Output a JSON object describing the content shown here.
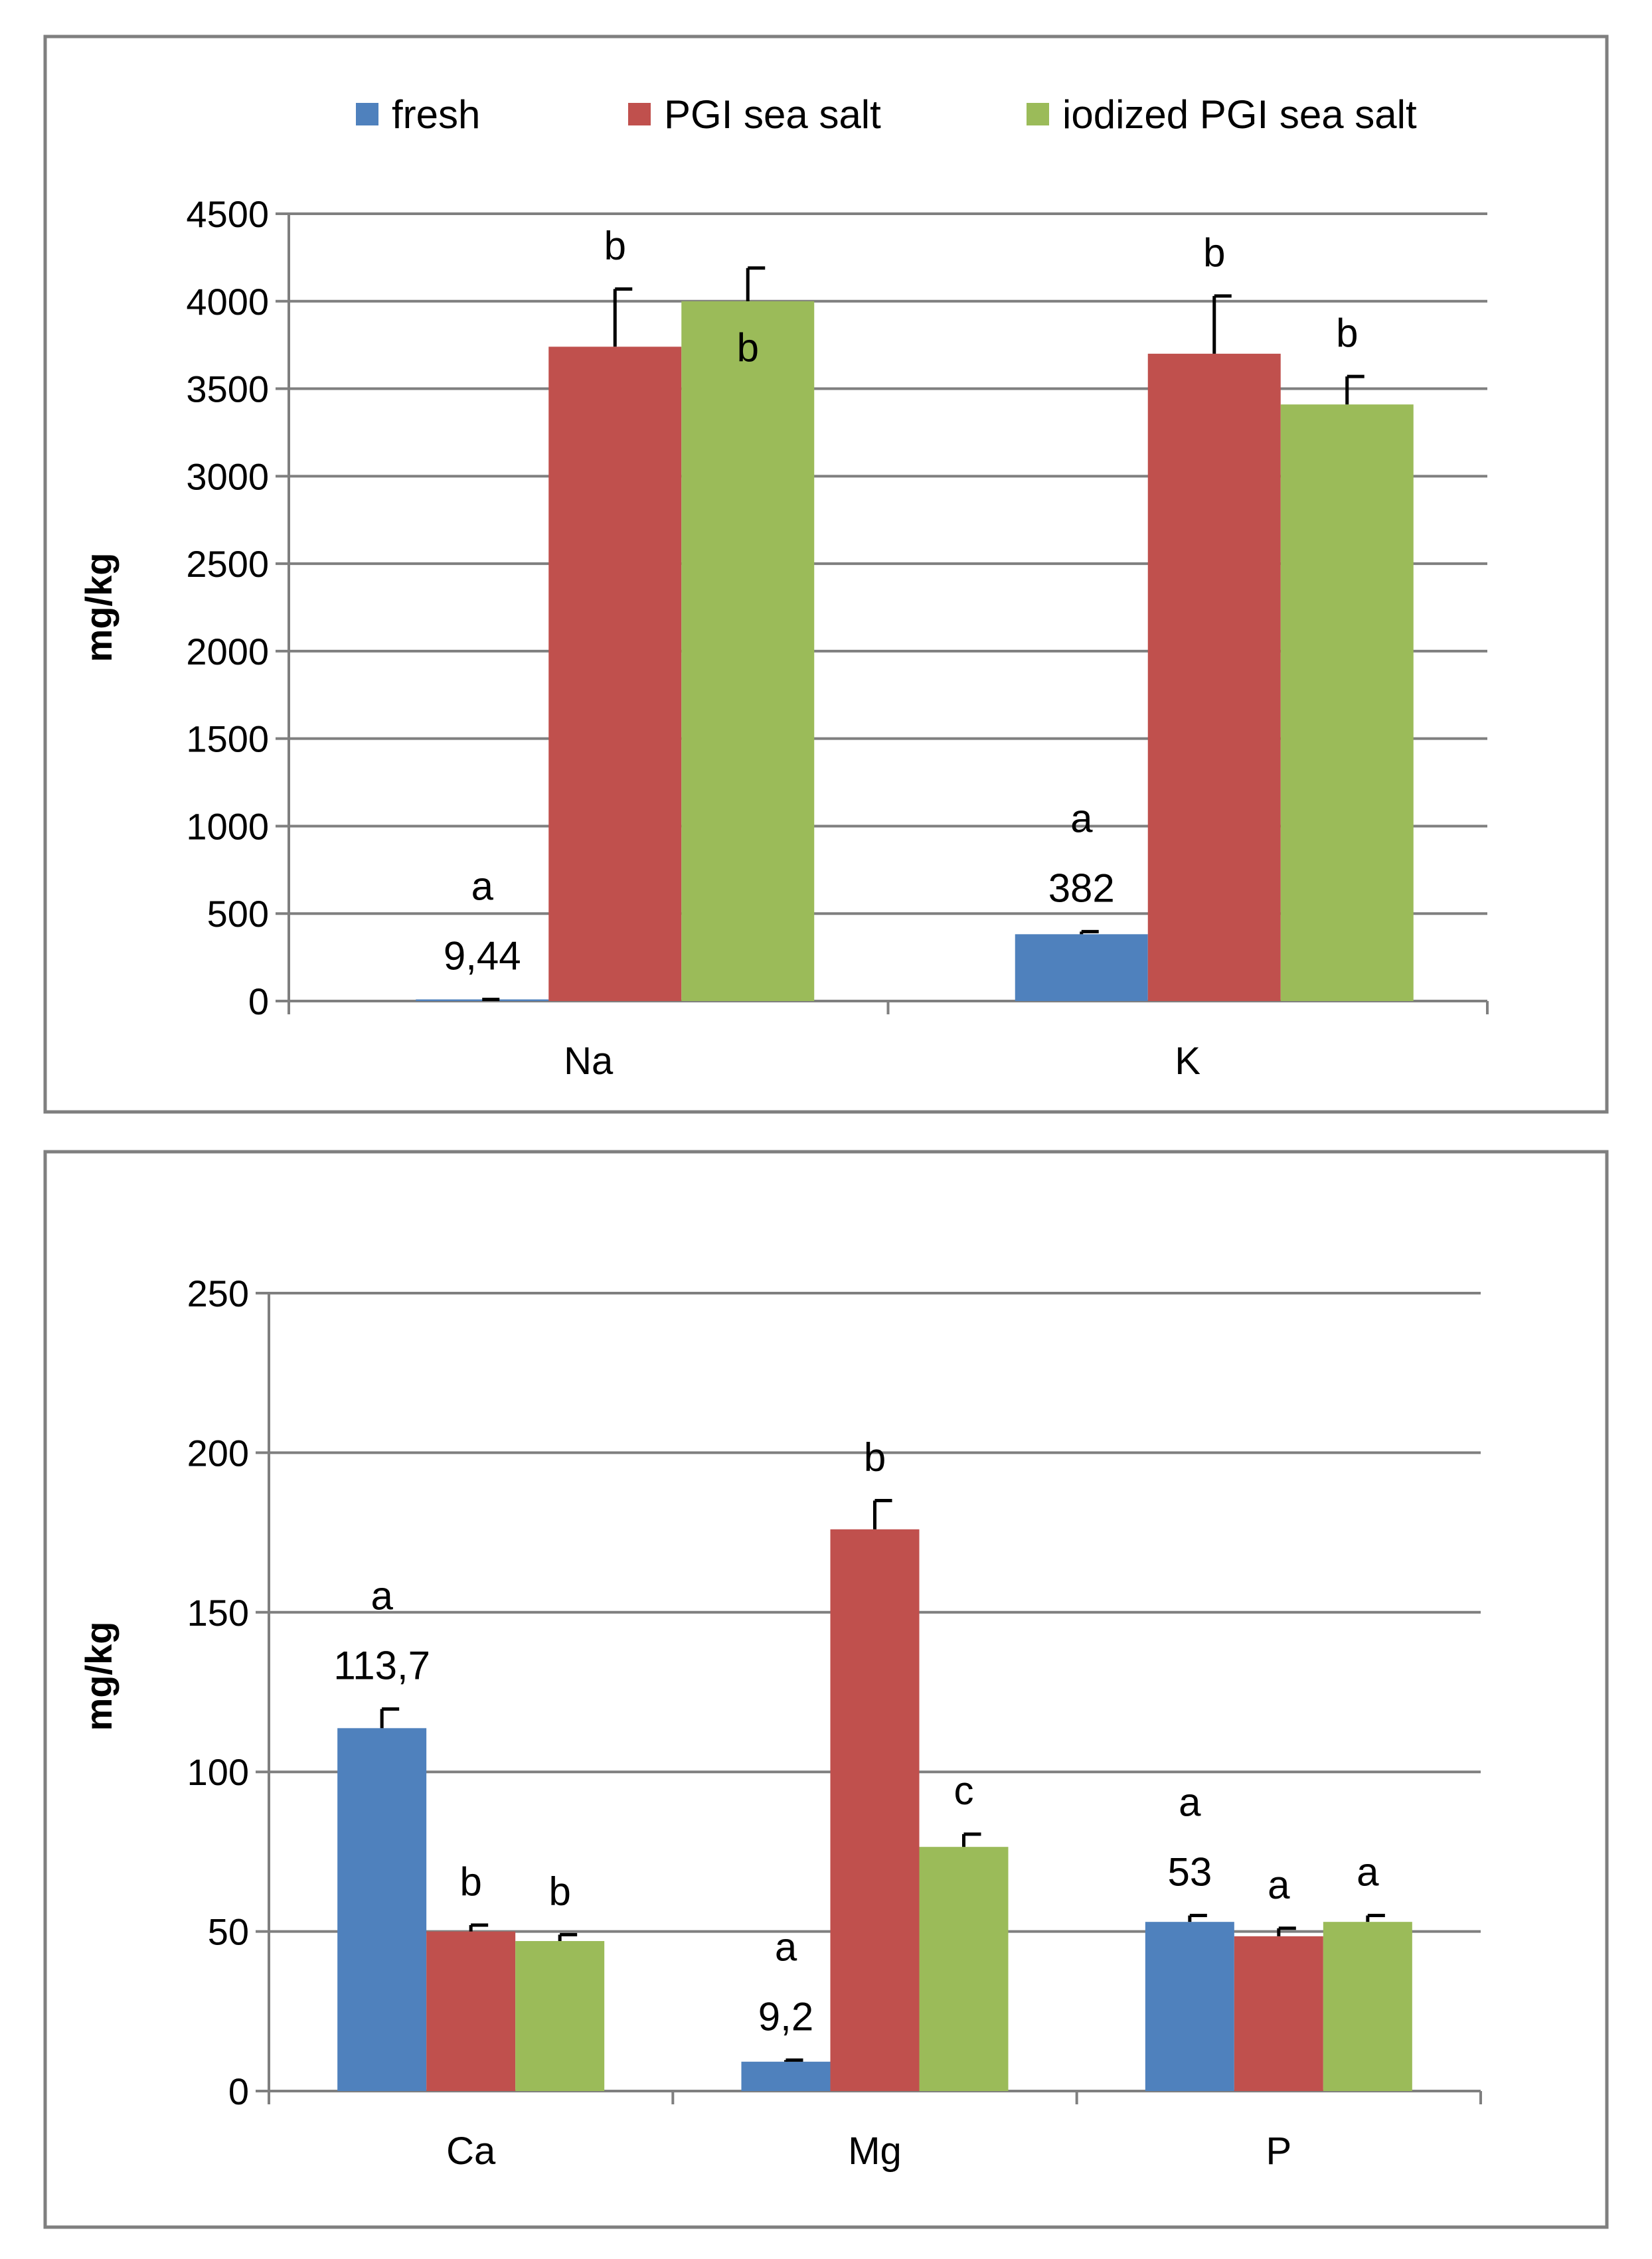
{
  "colors": {
    "fresh": "#4f81bd",
    "pgi": "#c0504d",
    "iodized": "#9bbb59",
    "grid": "#7f7f7f",
    "frame": "#7f7f7f"
  },
  "chart_data": [
    {
      "type": "bar",
      "ylabel": "mg/kg",
      "ylim": [
        0,
        4500
      ],
      "yticks": [
        0,
        500,
        1000,
        1500,
        2000,
        2500,
        3000,
        3500,
        4000,
        4500
      ],
      "legend": {
        "placement": "top",
        "entries": [
          "fresh",
          "PGI sea salt",
          "iodized PGI sea salt"
        ]
      },
      "categories": [
        "Na",
        "K"
      ],
      "series": [
        {
          "name": "fresh",
          "values": [
            9.44,
            382
          ],
          "errors": [
            0,
            15
          ],
          "letters": [
            "a",
            "a"
          ],
          "value_labels": [
            "9,44",
            "382"
          ]
        },
        {
          "name": "PGI sea salt",
          "values": [
            3740,
            3700
          ],
          "errors": [
            330,
            330
          ],
          "letters": [
            "b",
            "b"
          ],
          "value_labels": [
            "",
            ""
          ]
        },
        {
          "name": "iodized PGI sea salt",
          "values": [
            4000,
            3410
          ],
          "errors": [
            190,
            160
          ],
          "letters": [
            "b",
            "b"
          ],
          "value_labels": [
            "",
            ""
          ]
        }
      ]
    },
    {
      "type": "bar",
      "ylabel": "mg/kg",
      "ylim": [
        0,
        250
      ],
      "yticks": [
        0,
        50,
        100,
        150,
        200,
        250
      ],
      "categories": [
        "Ca",
        "Mg",
        "P"
      ],
      "series": [
        {
          "name": "fresh",
          "values": [
            113.7,
            9.2,
            53
          ],
          "errors": [
            6,
            0.5,
            2
          ],
          "letters": [
            "a",
            "a",
            "a"
          ],
          "value_labels": [
            "113,7",
            "9,2",
            "53"
          ]
        },
        {
          "name": "PGI sea salt",
          "values": [
            50,
            176,
            48.5
          ],
          "errors": [
            2,
            9,
            2.5
          ],
          "letters": [
            "b",
            "b",
            "a"
          ],
          "value_labels": [
            "",
            "",
            ""
          ]
        },
        {
          "name": "iodized PGI sea salt",
          "values": [
            47,
            76.5,
            53
          ],
          "errors": [
            2,
            4,
            2
          ],
          "letters": [
            "b",
            "c",
            "a"
          ],
          "value_labels": [
            "",
            "",
            ""
          ]
        }
      ]
    }
  ]
}
